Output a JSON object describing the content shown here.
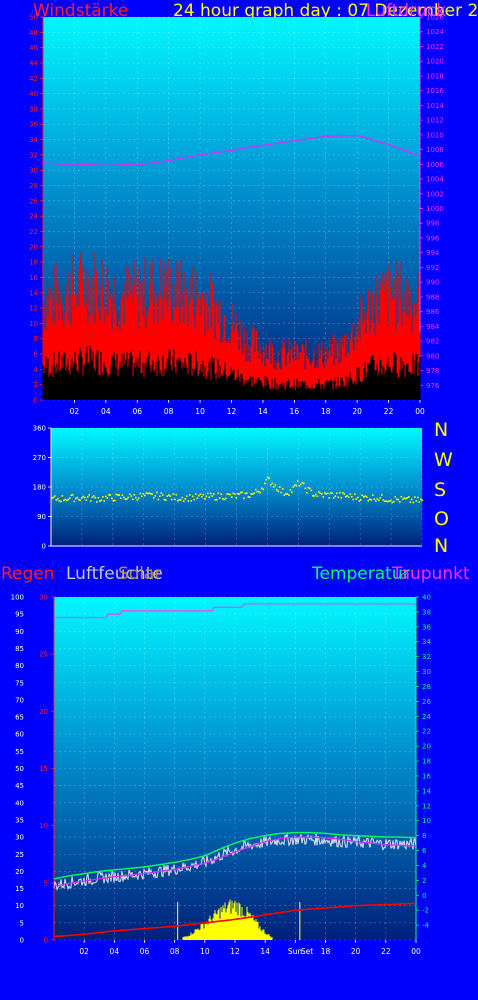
{
  "header": {
    "wind_title": "Windstärke",
    "graph_title": "24 hour graph day : 07 Dezember 2",
    "pressure_overlay": "Luftdruck"
  },
  "legend": {
    "regen": "Regen",
    "luftfeuchte": "Luftfeuchte",
    "solar": "Solar",
    "temperatur": "Temperatur",
    "taupunkt": "Taupunkt",
    "sunrise": "Sun",
    "sunset": "Set"
  },
  "compass": {
    "n": "N",
    "w": "W",
    "s": "S",
    "o": "O",
    "n2": "N"
  },
  "colors": {
    "page_bg": "#0000ff",
    "wind": "#ff0000",
    "wind_avg": "#000000",
    "pressure": "#cc33ff",
    "wind_dir": "#ffff00",
    "temperature": "#00ff60",
    "dewpoint": "#cc33ff",
    "humidity": "#ffffff",
    "rain": "#ff0000",
    "solar": "#ffff00"
  },
  "chart_data": [
    {
      "type": "line",
      "title": "Windstärke",
      "xlabel": "",
      "ylabel": "",
      "x_ticks": [
        "02",
        "04",
        "06",
        "08",
        "10",
        "12",
        "14",
        "16",
        "18",
        "20",
        "22",
        "00"
      ],
      "ylim": [
        0,
        50
      ],
      "y_ticks": [
        0,
        2,
        4,
        6,
        8,
        10,
        12,
        14,
        16,
        18,
        20,
        22,
        24,
        26,
        28,
        30,
        32,
        34,
        36,
        38,
        40,
        42,
        44,
        46,
        48,
        50
      ],
      "y2lim": [
        974,
        1026
      ],
      "y2_ticks": [
        976,
        978,
        980,
        982,
        984,
        986,
        988,
        990,
        992,
        994,
        996,
        998,
        1000,
        1002,
        1004,
        1006,
        1008,
        1010,
        1012,
        1014,
        1016,
        1018,
        1020,
        1022,
        1024,
        1026
      ],
      "series": [
        {
          "name": "Windstärke",
          "x": [
            0,
            1,
            2,
            3,
            4,
            5,
            6,
            7,
            8,
            9,
            10,
            11,
            12,
            13,
            14,
            15,
            16,
            17,
            18,
            19,
            20,
            21,
            22,
            23,
            24
          ],
          "values": [
            15,
            16,
            17,
            18,
            17,
            16,
            16,
            17,
            17,
            16,
            16,
            14,
            12,
            9,
            8,
            7,
            7,
            7,
            7,
            8,
            11,
            15,
            16,
            16,
            15
          ]
        },
        {
          "name": "Luftdruck",
          "x": [
            0,
            2,
            4,
            6,
            8,
            10,
            12,
            14,
            16,
            18,
            20,
            22,
            24
          ],
          "values": [
            1006.2,
            1005.9,
            1006.1,
            1005.9,
            1006.5,
            1007.3,
            1007.9,
            1008.6,
            1009.2,
            1009.8,
            1009.9,
            1008.7,
            1007.1
          ]
        }
      ],
      "grid": true
    },
    {
      "type": "scatter",
      "title": "",
      "xlabel": "",
      "ylabel": "",
      "ylim": [
        0,
        360
      ],
      "y_ticks": [
        0,
        90,
        180,
        270,
        360
      ],
      "series": [
        {
          "name": "",
          "x": [
            0,
            1,
            2,
            3,
            4,
            5,
            6,
            7,
            8,
            9,
            10,
            11,
            12,
            13,
            13.5,
            14,
            14.5,
            15,
            15.5,
            16,
            16.5,
            17,
            17.5,
            18,
            19,
            20,
            21,
            22,
            23,
            24
          ],
          "values": [
            145,
            148,
            150,
            147,
            150,
            152,
            155,
            155,
            150,
            150,
            152,
            155,
            155,
            160,
            175,
            205,
            185,
            165,
            170,
            195,
            175,
            160,
            158,
            158,
            155,
            150,
            150,
            145,
            142,
            140
          ]
        }
      ],
      "grid": true
    },
    {
      "type": "line",
      "title": "",
      "xlabel": "",
      "ylabel": "",
      "x_ticks": [
        "02",
        "04",
        "06",
        "08",
        "10",
        "12",
        "14",
        "16",
        "18",
        "20",
        "22",
        "00"
      ],
      "left_axis_humidity": {
        "ylim": [
          0,
          100
        ],
        "y_ticks": [
          0,
          5,
          10,
          15,
          20,
          25,
          30,
          35,
          40,
          45,
          50,
          55,
          60,
          65,
          70,
          75,
          80,
          85,
          90,
          95,
          100
        ]
      },
      "left_axis_rain": {
        "ylim": [
          0,
          30
        ],
        "y_ticks": [
          0,
          5,
          10,
          15,
          20,
          25,
          30
        ]
      },
      "right_axis_temp": {
        "ylim": [
          -6,
          40
        ],
        "y_ticks": [
          -4,
          -2,
          0,
          2,
          4,
          6,
          8,
          10,
          12,
          14,
          16,
          18,
          20,
          22,
          24,
          26,
          28,
          30,
          32,
          34,
          36,
          38,
          40
        ]
      },
      "series": [
        {
          "name": "Temperatur",
          "x": [
            0,
            1,
            2,
            3,
            4,
            5,
            6,
            7,
            8,
            9,
            10,
            11,
            12,
            13,
            14,
            15,
            16,
            17,
            18,
            19,
            20,
            21,
            22,
            23,
            24
          ],
          "values": [
            2.2,
            2.6,
            2.9,
            3.2,
            3.4,
            3.6,
            3.8,
            4.1,
            4.4,
            4.8,
            5.3,
            6.2,
            7.0,
            7.6,
            8.0,
            8.3,
            8.4,
            8.4,
            8.3,
            8.1,
            8.0,
            7.9,
            7.8,
            7.8,
            7.7
          ]
        },
        {
          "name": "Taupunkt",
          "x": [
            0,
            1,
            2,
            3,
            4,
            5,
            6,
            7,
            8,
            9,
            10,
            11,
            12,
            13,
            14,
            15,
            16,
            17,
            18,
            19,
            20,
            21,
            22,
            23,
            24
          ],
          "values": [
            1.2,
            1.6,
            1.9,
            2.2,
            2.5,
            2.7,
            2.9,
            3.2,
            3.5,
            3.9,
            4.3,
            5.0,
            5.8,
            6.5,
            7.2,
            7.6,
            7.8,
            7.8,
            7.7,
            7.5,
            7.2,
            7.0,
            6.8,
            6.7,
            6.6
          ]
        },
        {
          "name": "Luftfeuchte",
          "x": [
            0,
            1,
            2,
            3,
            4,
            5,
            6,
            7,
            8,
            9,
            10,
            11,
            12,
            13,
            14,
            15,
            16,
            17,
            18,
            19,
            20,
            21,
            22,
            23,
            24
          ],
          "values": [
            94,
            94,
            94,
            94,
            95,
            96,
            96,
            96,
            96,
            96,
            96,
            97,
            97,
            98,
            98,
            98,
            98,
            98,
            98,
            98,
            98,
            98,
            98,
            98,
            98
          ]
        },
        {
          "name": "Solar",
          "x": [
            8.5,
            9,
            9.5,
            10,
            10.5,
            11,
            11.5,
            12,
            12.5,
            13,
            13.5,
            14,
            14.5
          ],
          "values": [
            0.2,
            0.5,
            1.0,
            1.5,
            2.0,
            2.6,
            3.0,
            3.2,
            2.8,
            2.2,
            1.4,
            0.7,
            0.2
          ]
        },
        {
          "name": "Regen",
          "x": [
            0,
            2,
            4,
            6,
            8,
            10,
            12,
            14,
            16,
            18,
            20,
            22,
            23.9
          ],
          "values": [
            0.3,
            0.5,
            0.8,
            1.0,
            1.2,
            1.5,
            1.8,
            2.2,
            2.6,
            2.8,
            3.0,
            3.1,
            3.2
          ]
        }
      ],
      "markers": {
        "sunrise_hour": 8.2,
        "sunset_hour": 16.3
      },
      "grid": true
    }
  ]
}
